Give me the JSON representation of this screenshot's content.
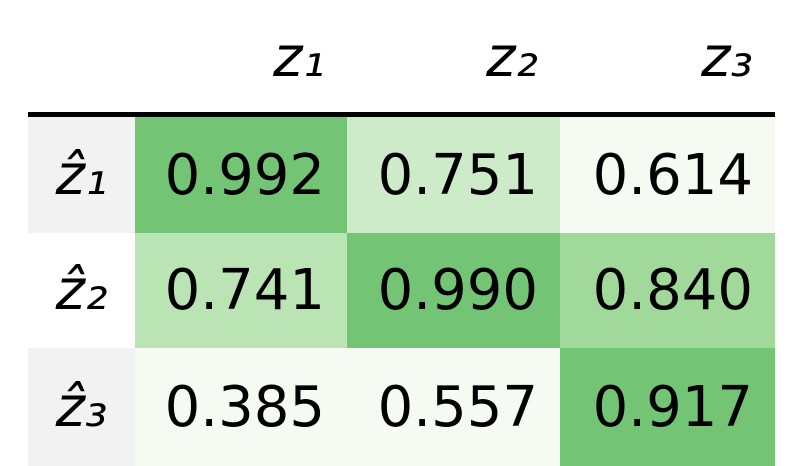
{
  "table": {
    "columns": [
      "z₁",
      "z₂",
      "z₃"
    ],
    "rows": [
      {
        "label": "ẑ₁",
        "cells": [
          "0.992",
          "0.751",
          "0.614"
        ],
        "colors": [
          "#74c476",
          "#cdebc9",
          "#f5fbf3"
        ]
      },
      {
        "label": "ẑ₂",
        "cells": [
          "0.741",
          "0.990",
          "0.840"
        ],
        "colors": [
          "#bae4b3",
          "#74c476",
          "#a1d99b"
        ]
      },
      {
        "label": "ẑ₃",
        "cells": [
          "0.385",
          "0.557",
          "0.917"
        ],
        "colors": [
          "#f5fbf3",
          "#f5fbf3",
          "#74c476"
        ]
      }
    ]
  }
}
